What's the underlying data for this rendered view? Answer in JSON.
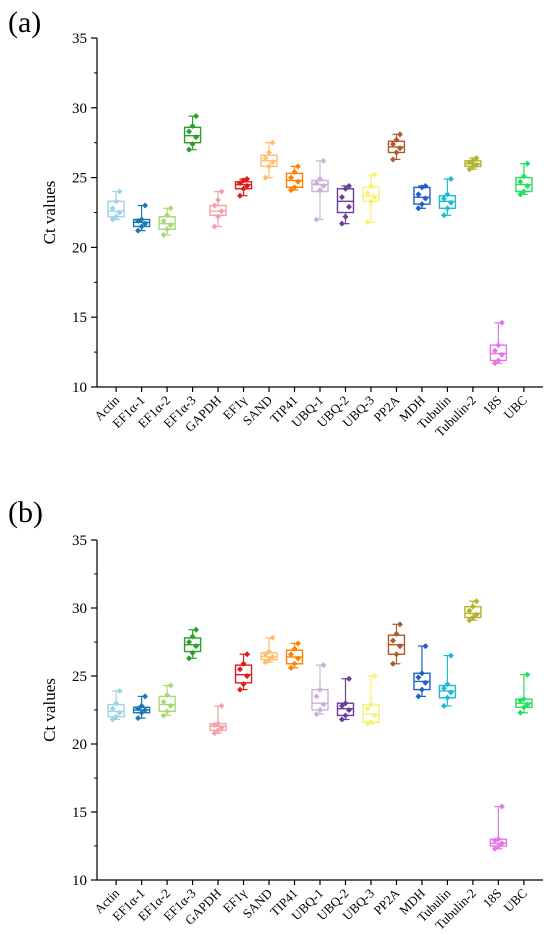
{
  "chart_data": [
    {
      "type": "box",
      "panel_label": "(a)",
      "ylabel": "Ct values",
      "ylim": [
        10,
        35
      ],
      "yticks": [
        10,
        15,
        20,
        25,
        30,
        35
      ],
      "categories": [
        "Actin",
        "EF1α-1",
        "EF1α-2",
        "EF1α-3",
        "GAPDH",
        "EF1γ",
        "SAND",
        "TIP41",
        "UBQ-1",
        "UBQ-2",
        "UBQ-3",
        "PP2A",
        "MDH",
        "Tubulin",
        "Tubulin-2",
        "18S",
        "UBC"
      ],
      "colors": [
        "#9fd3e8",
        "#1a78b4",
        "#a9d977",
        "#2aa02b",
        "#f6a0a8",
        "#e31a1c",
        "#fdbf6f",
        "#ff8000",
        "#cab2d6",
        "#6a3d9a",
        "#f8f26e",
        "#b15928",
        "#1f5fc8",
        "#1cbbd7",
        "#b5b22b",
        "#e078e6",
        "#22e060"
      ],
      "boxes": [
        {
          "min": 22.0,
          "q1": 22.2,
          "median": 22.6,
          "q3": 23.3,
          "max": 24.0,
          "points": [
            22.0,
            22.2,
            22.5,
            22.8,
            23.3,
            24.0
          ]
        },
        {
          "min": 21.2,
          "q1": 21.5,
          "median": 21.8,
          "q3": 22.0,
          "max": 23.0,
          "points": [
            21.2,
            21.5,
            21.7,
            21.9,
            22.0,
            23.0
          ]
        },
        {
          "min": 20.9,
          "q1": 21.3,
          "median": 21.7,
          "q3": 22.2,
          "max": 22.8,
          "points": [
            20.9,
            21.3,
            21.6,
            21.9,
            22.3,
            22.8
          ]
        },
        {
          "min": 27.0,
          "q1": 27.5,
          "median": 28.0,
          "q3": 28.6,
          "max": 29.4,
          "points": [
            27.0,
            27.4,
            27.9,
            28.3,
            28.7,
            29.4
          ]
        },
        {
          "min": 21.5,
          "q1": 22.3,
          "median": 22.6,
          "q3": 23.0,
          "max": 24.0,
          "points": [
            21.5,
            22.2,
            22.6,
            23.0,
            23.4,
            24.0
          ]
        },
        {
          "min": 23.7,
          "q1": 24.2,
          "median": 24.5,
          "q3": 24.7,
          "max": 24.9,
          "points": [
            23.7,
            24.2,
            24.4,
            24.6,
            24.8,
            24.9
          ]
        },
        {
          "min": 25.0,
          "q1": 25.8,
          "median": 26.2,
          "q3": 26.6,
          "max": 27.5,
          "points": [
            25.0,
            25.8,
            26.1,
            26.4,
            26.8,
            27.5
          ]
        },
        {
          "min": 24.1,
          "q1": 24.3,
          "median": 24.8,
          "q3": 25.3,
          "max": 25.8,
          "points": [
            24.1,
            24.3,
            24.7,
            25.0,
            25.4,
            25.8
          ]
        },
        {
          "min": 22.0,
          "q1": 24.0,
          "median": 24.5,
          "q3": 24.8,
          "max": 26.2,
          "points": [
            22.0,
            24.1,
            24.4,
            24.6,
            24.9,
            26.2
          ]
        },
        {
          "min": 21.7,
          "q1": 22.5,
          "median": 23.3,
          "q3": 24.2,
          "max": 24.4,
          "points": [
            21.7,
            22.2,
            22.9,
            23.6,
            24.2,
            24.4
          ]
        },
        {
          "min": 21.8,
          "q1": 23.3,
          "median": 23.7,
          "q3": 24.3,
          "max": 25.2,
          "points": [
            21.8,
            23.3,
            23.6,
            23.9,
            24.4,
            25.2
          ]
        },
        {
          "min": 26.3,
          "q1": 26.8,
          "median": 27.2,
          "q3": 27.6,
          "max": 28.1,
          "points": [
            26.3,
            26.8,
            27.1,
            27.4,
            27.7,
            28.1
          ]
        },
        {
          "min": 22.8,
          "q1": 23.1,
          "median": 23.6,
          "q3": 24.3,
          "max": 24.4,
          "points": [
            22.8,
            23.1,
            23.5,
            23.8,
            24.3,
            24.4
          ]
        },
        {
          "min": 22.3,
          "q1": 22.8,
          "median": 23.3,
          "q3": 23.7,
          "max": 24.9,
          "points": [
            22.3,
            22.8,
            23.2,
            23.5,
            23.8,
            24.9
          ]
        },
        {
          "min": 25.6,
          "q1": 25.8,
          "median": 26.0,
          "q3": 26.2,
          "max": 26.4,
          "points": [
            25.6,
            25.8,
            25.9,
            26.1,
            26.2,
            26.4
          ]
        },
        {
          "min": 11.7,
          "q1": 11.9,
          "median": 12.4,
          "q3": 13.0,
          "max": 14.6,
          "points": [
            11.7,
            11.9,
            12.3,
            12.6,
            13.0,
            14.6
          ]
        },
        {
          "min": 23.8,
          "q1": 24.0,
          "median": 24.5,
          "q3": 25.0,
          "max": 26.0,
          "points": [
            23.8,
            24.0,
            24.4,
            24.7,
            25.1,
            26.0
          ]
        }
      ]
    },
    {
      "type": "box",
      "panel_label": "(b)",
      "ylabel": "Ct values",
      "ylim": [
        10,
        35
      ],
      "yticks": [
        10,
        15,
        20,
        25,
        30,
        35
      ],
      "categories": [
        "Actin",
        "EF1α-1",
        "EF1α-2",
        "EF1α-3",
        "GAPDH",
        "EF1γ",
        "SAND",
        "TIP41",
        "UBQ-1",
        "UBQ-2",
        "UBQ-3",
        "PP2A",
        "MDH",
        "Tubulin",
        "Tubulin-2",
        "18S",
        "UBC"
      ],
      "colors": [
        "#9fd3e8",
        "#1a78b4",
        "#a9d977",
        "#2aa02b",
        "#f6a0a8",
        "#e31a1c",
        "#fdbf6f",
        "#ff8000",
        "#cab2d6",
        "#6a3d9a",
        "#f8f26e",
        "#b15928",
        "#1f5fc8",
        "#1cbbd7",
        "#b5b22b",
        "#e078e6",
        "#22e060"
      ],
      "boxes": [
        {
          "min": 21.8,
          "q1": 22.0,
          "median": 22.4,
          "q3": 22.9,
          "max": 23.9,
          "points": [
            21.8,
            22.0,
            22.3,
            22.6,
            23.0,
            23.9
          ]
        },
        {
          "min": 21.9,
          "q1": 22.3,
          "median": 22.5,
          "q3": 22.7,
          "max": 23.5,
          "points": [
            21.9,
            22.3,
            22.5,
            22.6,
            22.8,
            23.5
          ]
        },
        {
          "min": 22.1,
          "q1": 22.4,
          "median": 22.9,
          "q3": 23.5,
          "max": 24.3,
          "points": [
            22.1,
            22.4,
            22.8,
            23.1,
            23.6,
            24.3
          ]
        },
        {
          "min": 26.3,
          "q1": 26.8,
          "median": 27.3,
          "q3": 27.8,
          "max": 28.4,
          "points": [
            26.3,
            26.7,
            27.2,
            27.5,
            27.9,
            28.4
          ]
        },
        {
          "min": 20.8,
          "q1": 21.0,
          "median": 21.3,
          "q3": 21.5,
          "max": 22.8,
          "points": [
            20.8,
            21.0,
            21.2,
            21.4,
            21.5,
            22.8
          ]
        },
        {
          "min": 24.0,
          "q1": 24.5,
          "median": 25.1,
          "q3": 25.8,
          "max": 26.6,
          "points": [
            24.0,
            24.4,
            25.0,
            25.5,
            25.9,
            26.6
          ]
        },
        {
          "min": 26.0,
          "q1": 26.2,
          "median": 26.4,
          "q3": 26.7,
          "max": 27.8,
          "points": [
            26.0,
            26.2,
            26.4,
            26.6,
            26.8,
            27.8
          ]
        },
        {
          "min": 25.6,
          "q1": 25.9,
          "median": 26.4,
          "q3": 26.9,
          "max": 27.4,
          "points": [
            25.6,
            25.9,
            26.3,
            26.6,
            27.0,
            27.4
          ]
        },
        {
          "min": 22.2,
          "q1": 22.5,
          "median": 23.0,
          "q3": 24.0,
          "max": 25.8,
          "points": [
            22.2,
            22.5,
            22.9,
            23.5,
            24.0,
            25.8
          ]
        },
        {
          "min": 21.8,
          "q1": 22.1,
          "median": 22.6,
          "q3": 23.0,
          "max": 24.8,
          "points": [
            21.8,
            22.1,
            22.5,
            22.8,
            23.0,
            24.8
          ]
        },
        {
          "min": 21.5,
          "q1": 21.6,
          "median": 22.2,
          "q3": 22.9,
          "max": 25.0,
          "points": [
            21.5,
            21.6,
            22.1,
            22.6,
            22.9,
            25.0
          ]
        },
        {
          "min": 25.9,
          "q1": 26.6,
          "median": 27.3,
          "q3": 28.0,
          "max": 28.8,
          "points": [
            25.9,
            26.6,
            27.2,
            27.6,
            28.1,
            28.8
          ]
        },
        {
          "min": 23.5,
          "q1": 24.0,
          "median": 24.6,
          "q3": 25.2,
          "max": 27.2,
          "points": [
            23.5,
            24.0,
            24.5,
            24.9,
            25.2,
            27.2
          ]
        },
        {
          "min": 22.8,
          "q1": 23.4,
          "median": 23.9,
          "q3": 24.3,
          "max": 26.5,
          "points": [
            22.8,
            23.4,
            23.8,
            24.1,
            24.4,
            26.5
          ]
        },
        {
          "min": 29.1,
          "q1": 29.3,
          "median": 29.6,
          "q3": 30.1,
          "max": 30.5,
          "points": [
            29.1,
            29.3,
            29.5,
            29.8,
            30.1,
            30.5
          ]
        },
        {
          "min": 12.3,
          "q1": 12.5,
          "median": 12.7,
          "q3": 13.0,
          "max": 15.4,
          "points": [
            12.3,
            12.5,
            12.7,
            12.9,
            13.0,
            15.4
          ]
        },
        {
          "min": 22.3,
          "q1": 22.7,
          "median": 23.0,
          "q3": 23.3,
          "max": 25.1,
          "points": [
            22.3,
            22.7,
            22.9,
            23.2,
            23.3,
            25.1
          ]
        }
      ]
    }
  ]
}
